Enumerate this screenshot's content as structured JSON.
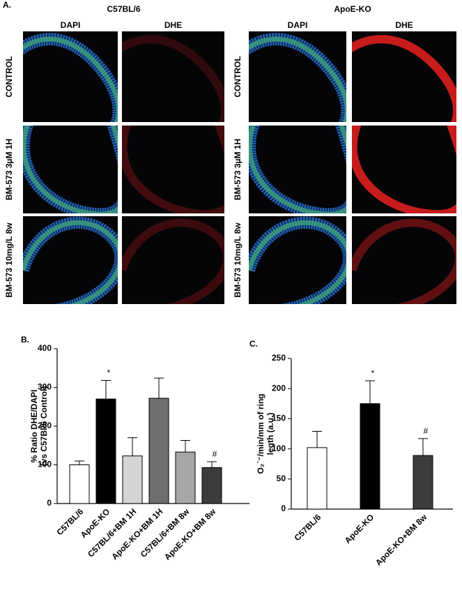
{
  "panel_a": {
    "label": "A.",
    "groups": [
      {
        "title": "C57BL/6",
        "columns": [
          "DAPI",
          "DHE"
        ]
      },
      {
        "title": "ApoE-KO",
        "columns": [
          "DAPI",
          "DHE"
        ]
      }
    ],
    "rows": [
      "CONTROL",
      "BM-573 3µM 1H",
      "BM-573 10mg/L 8w"
    ]
  },
  "chart_data": [
    {
      "type": "bar",
      "panel_label": "B.",
      "ylabel": [
        "% Ratio DHE/DAPI",
        "(vs C57Bl/6 Control)"
      ],
      "categories": [
        "C57BL/6",
        "ApoE-KO",
        "C57BL/6+BM 1H",
        "ApoE-KO+BM 1H",
        "C57BL/6+BM 8w",
        "ApoE-KO+BM 8w"
      ],
      "values": [
        100,
        270,
        123,
        272,
        133,
        93
      ],
      "errors": [
        10,
        48,
        47,
        52,
        30,
        15
      ],
      "markers": [
        null,
        "*",
        null,
        null,
        null,
        "#"
      ],
      "colors": [
        "#ffffff",
        "#000000",
        "#d4d4d4",
        "#6e6e6e",
        "#a6a6a6",
        "#3c3c3c"
      ],
      "ylim": [
        0,
        400
      ],
      "yticks": [
        0,
        100,
        200,
        300,
        400
      ]
    },
    {
      "type": "bar",
      "panel_label": "C.",
      "ylabel": [
        "O₂˙⁻/min/mm of ring",
        "legth (a.u.)"
      ],
      "categories": [
        "C57BL/6",
        "ApoE-KO",
        "ApoE-KO+BM 8w"
      ],
      "values": [
        102,
        175,
        89
      ],
      "errors": [
        27,
        38,
        28
      ],
      "markers": [
        null,
        "*",
        "#"
      ],
      "colors": [
        "#ffffff",
        "#000000",
        "#3c3c3c"
      ],
      "ylim": [
        0,
        250
      ],
      "yticks": [
        0,
        50,
        100,
        150,
        200,
        250
      ]
    }
  ]
}
